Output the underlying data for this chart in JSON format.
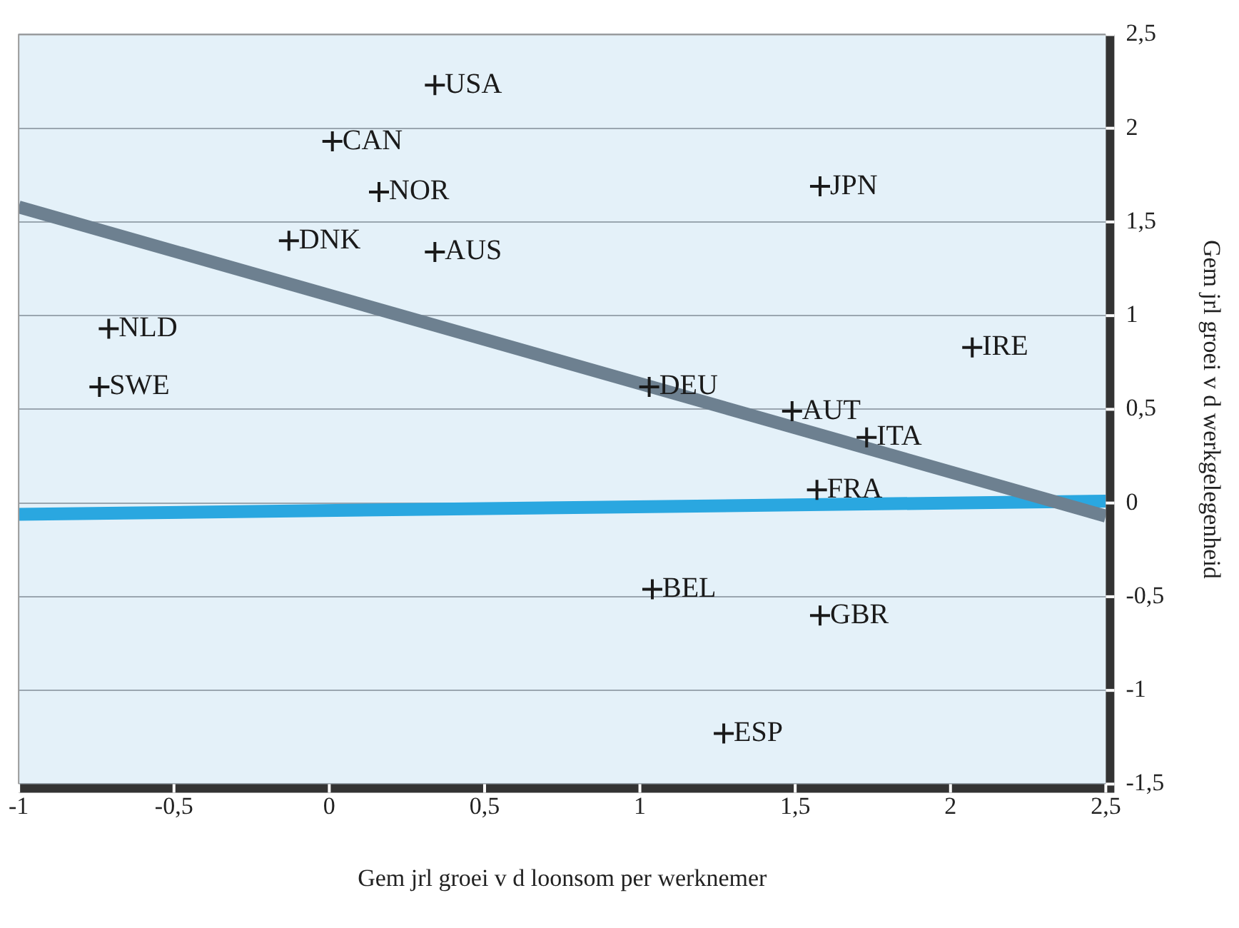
{
  "chart_data": {
    "type": "scatter",
    "xlabel": "Gem jrl groei v d loonsom per werknemer",
    "ylabel": "Gem jrl groei v d werkgelegenheid",
    "series": [
      {
        "color": "#1a1a1a",
        "marker": "cross",
        "x": [
          0.34,
          0.01,
          0.16,
          -0.13,
          0.34,
          -0.71,
          -0.74,
          1.58,
          2.07,
          1.03,
          1.49,
          1.73,
          1.57,
          1.04,
          1.58,
          1.27
        ],
        "values": [
          2.23,
          1.93,
          1.66,
          1.4,
          1.34,
          0.93,
          0.62,
          1.69,
          0.83,
          0.62,
          0.49,
          0.35,
          0.07,
          -0.46,
          -0.6,
          -1.23
        ]
      },
      {
        "type": "line",
        "color": "#6d8090",
        "x": [
          -1,
          2.5
        ],
        "values": [
          1.58,
          -0.07
        ]
      },
      {
        "type": "line",
        "color": "#2aa7e0",
        "x": [
          -1,
          2.5
        ],
        "values": [
          -0.06,
          0.01
        ]
      }
    ],
    "annotations": [
      {
        "text": "USA",
        "x": 0.34,
        "y": 2.23
      },
      {
        "text": "CAN",
        "x": 0.01,
        "y": 1.93
      },
      {
        "text": "NOR",
        "x": 0.16,
        "y": 1.66
      },
      {
        "text": "DNK",
        "x": -0.13,
        "y": 1.4
      },
      {
        "text": "AUS",
        "x": 0.34,
        "y": 1.34
      },
      {
        "text": "NLD",
        "x": -0.71,
        "y": 0.93
      },
      {
        "text": "SWE",
        "x": -0.74,
        "y": 0.62
      },
      {
        "text": "JPN",
        "x": 1.58,
        "y": 1.69
      },
      {
        "text": "IRE",
        "x": 2.07,
        "y": 0.83
      },
      {
        "text": "DEU",
        "x": 1.03,
        "y": 0.62
      },
      {
        "text": "AUT",
        "x": 1.49,
        "y": 0.49
      },
      {
        "text": "ITA",
        "x": 1.73,
        "y": 0.35
      },
      {
        "text": "FRA",
        "x": 1.57,
        "y": 0.07
      },
      {
        "text": "BEL",
        "x": 1.04,
        "y": -0.46
      },
      {
        "text": "GBR",
        "x": 1.58,
        "y": -0.6
      },
      {
        "text": "ESP",
        "x": 1.27,
        "y": -1.23
      }
    ],
    "xlim": [
      -1,
      2.5
    ],
    "xticks": [
      {
        "value": -1,
        "label": "-1"
      },
      {
        "value": -0.5,
        "label": "-0,5"
      },
      {
        "value": 0,
        "label": "0"
      },
      {
        "value": 0.5,
        "label": "0,5"
      },
      {
        "value": 1,
        "label": "1"
      },
      {
        "value": 1.5,
        "label": "1,5"
      },
      {
        "value": 2,
        "label": "2"
      },
      {
        "value": 2.5,
        "label": "2,5"
      }
    ],
    "ylim": [
      -1.5,
      2.5
    ],
    "yticks": [
      {
        "value": -1.5,
        "label": "-1,5"
      },
      {
        "value": -1,
        "label": "-1"
      },
      {
        "value": -0.5,
        "label": "-0,5"
      },
      {
        "value": 0,
        "label": "0"
      },
      {
        "value": 0.5,
        "label": "0,5"
      },
      {
        "value": 1,
        "label": "1"
      },
      {
        "value": 1.5,
        "label": "1,5"
      },
      {
        "value": 2,
        "label": "2"
      },
      {
        "value": 2.5,
        "label": "2,5"
      }
    ],
    "grid": "y",
    "legend": false
  }
}
